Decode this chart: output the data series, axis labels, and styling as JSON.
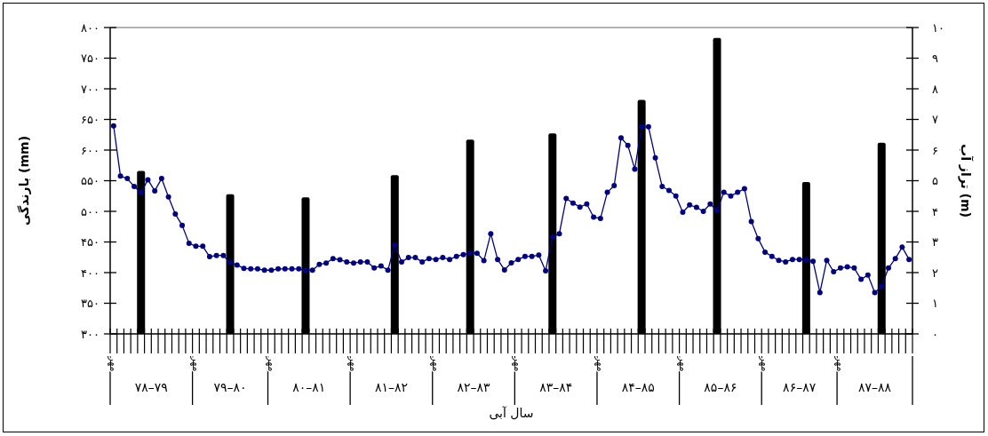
{
  "chart_data": {
    "type": "bar",
    "xlabel": "سال آبی",
    "ylabel": "بارندگی (mm)",
    "y2label": "تراز آب (m)",
    "categories": [
      "مهر",
      null,
      null,
      null,
      null,
      null,
      null,
      null,
      null,
      null,
      null,
      null,
      "مهر",
      null,
      null,
      null,
      null,
      null,
      null,
      null,
      null,
      null,
      null,
      "مهر",
      null,
      null,
      null,
      null,
      null,
      null,
      null,
      null,
      null,
      null,
      null,
      "مهر",
      null,
      null,
      null,
      null,
      null,
      null,
      null,
      null,
      null,
      null,
      null,
      "مهر",
      null,
      null,
      null,
      null,
      null,
      null,
      null,
      null,
      null,
      null,
      null,
      "مهر",
      null,
      null,
      null,
      null,
      null,
      null,
      null,
      null,
      null,
      null,
      null,
      "مهر",
      null,
      null,
      null,
      null,
      null,
      null,
      null,
      null,
      null,
      null,
      null,
      "مهر",
      null,
      null,
      null,
      null,
      null,
      null,
      null,
      null,
      null,
      null,
      null,
      "مهر",
      null,
      null,
      null,
      null,
      null,
      null,
      null,
      null,
      null,
      null,
      "مهر",
      null,
      null,
      null,
      null,
      null,
      null,
      null,
      null,
      null,
      null
    ],
    "annotations": [
      "۷۸–۷۹",
      "۷۹–۸۰",
      "۸۰–۸۱",
      "۸۱–۸۲",
      "۸۲–۸۳",
      "۸۳–۸۴",
      "۸۴–۸۵",
      "۸۵–۸۶",
      "۸۶–۸۷",
      "۸۷–۸۸"
    ],
    "ylim": [
      300,
      800
    ],
    "yticks": [
      {
        "value": 300,
        "label": "۳۰۰"
      },
      {
        "value": 350,
        "label": "۳۵۰"
      },
      {
        "value": 400,
        "label": "۴۰۰"
      },
      {
        "value": 450,
        "label": "۴۵۰"
      },
      {
        "value": 500,
        "label": "۵۰۰"
      },
      {
        "value": 550,
        "label": "۵۵۰"
      },
      {
        "value": 600,
        "label": "۶۰۰"
      },
      {
        "value": 650,
        "label": "۶۵۰"
      },
      {
        "value": 700,
        "label": "۷۰۰"
      },
      {
        "value": 750,
        "label": "۷۵۰"
      },
      {
        "value": 800,
        "label": "۸۰۰"
      }
    ],
    "y2lim": [
      0,
      10
    ],
    "y2ticks": [
      {
        "value": 0,
        "label": "۰"
      },
      {
        "value": 1,
        "label": "۱"
      },
      {
        "value": 2,
        "label": "۲"
      },
      {
        "value": 3,
        "label": "۳"
      },
      {
        "value": 4,
        "label": "۴"
      },
      {
        "value": 5,
        "label": "۵"
      },
      {
        "value": 6,
        "label": "۶"
      },
      {
        "value": 7,
        "label": "۷"
      },
      {
        "value": 8,
        "label": "۸"
      },
      {
        "value": 9,
        "label": "۹"
      },
      {
        "value": 10,
        "label": "۱۰"
      }
    ],
    "marker": "circle",
    "series": [
      {
        "type": "bar",
        "color": "#000000",
        "values": [
          null,
          null,
          null,
          null,
          566,
          null,
          null,
          null,
          null,
          null,
          null,
          null,
          null,
          null,
          null,
          null,
          null,
          528,
          null,
          null,
          null,
          null,
          null,
          null,
          null,
          null,
          null,
          null,
          523,
          null,
          null,
          null,
          null,
          null,
          null,
          null,
          null,
          null,
          null,
          null,
          null,
          559,
          null,
          null,
          null,
          null,
          null,
          null,
          null,
          null,
          null,
          null,
          617,
          null,
          null,
          null,
          null,
          null,
          null,
          null,
          null,
          null,
          null,
          null,
          627,
          null,
          null,
          null,
          null,
          null,
          null,
          null,
          null,
          null,
          null,
          null,
          null,
          682,
          null,
          null,
          null,
          null,
          null,
          null,
          null,
          null,
          null,
          null,
          783,
          null,
          null,
          null,
          null,
          null,
          null,
          null,
          null,
          null,
          null,
          null,
          null,
          548,
          null,
          null,
          null,
          null,
          null,
          null,
          null,
          null,
          null,
          null,
          612,
          null,
          null,
          null,
          null
        ]
      },
      {
        "type": "line",
        "axis": "y2",
        "color": "#000080",
        "values": [
          6.79,
          5.15,
          5.07,
          4.81,
          4.61,
          5.03,
          4.67,
          5.07,
          4.47,
          3.91,
          3.54,
          2.96,
          2.86,
          2.86,
          2.52,
          2.56,
          2.56,
          2.33,
          2.25,
          2.14,
          2.12,
          2.12,
          2.08,
          2.08,
          2.12,
          2.12,
          2.12,
          2.12,
          2.08,
          2.08,
          2.27,
          2.31,
          2.46,
          2.42,
          2.35,
          2.31,
          2.35,
          2.35,
          2.15,
          2.22,
          2.08,
          2.9,
          2.35,
          2.49,
          2.49,
          2.35,
          2.46,
          2.43,
          2.49,
          2.43,
          2.53,
          2.59,
          2.63,
          2.63,
          2.39,
          3.27,
          2.43,
          2.09,
          2.32,
          2.43,
          2.53,
          2.53,
          2.57,
          2.06,
          3.16,
          3.27,
          4.42,
          4.27,
          4.14,
          4.24,
          3.81,
          3.77,
          4.62,
          4.84,
          6.4,
          6.15,
          5.38,
          6.76,
          6.76,
          5.75,
          4.81,
          4.68,
          4.5,
          3.97,
          4.21,
          4.13,
          4.0,
          4.24,
          4.03,
          4.62,
          4.5,
          4.62,
          4.74,
          3.67,
          3.11,
          2.67,
          2.53,
          2.4,
          2.35,
          2.43,
          2.43,
          2.42,
          2.37,
          1.35,
          2.4,
          2.03,
          2.15,
          2.19,
          2.15,
          1.78,
          1.92,
          1.35,
          1.55,
          2.15,
          2.46,
          2.83,
          2.43
        ]
      }
    ]
  }
}
